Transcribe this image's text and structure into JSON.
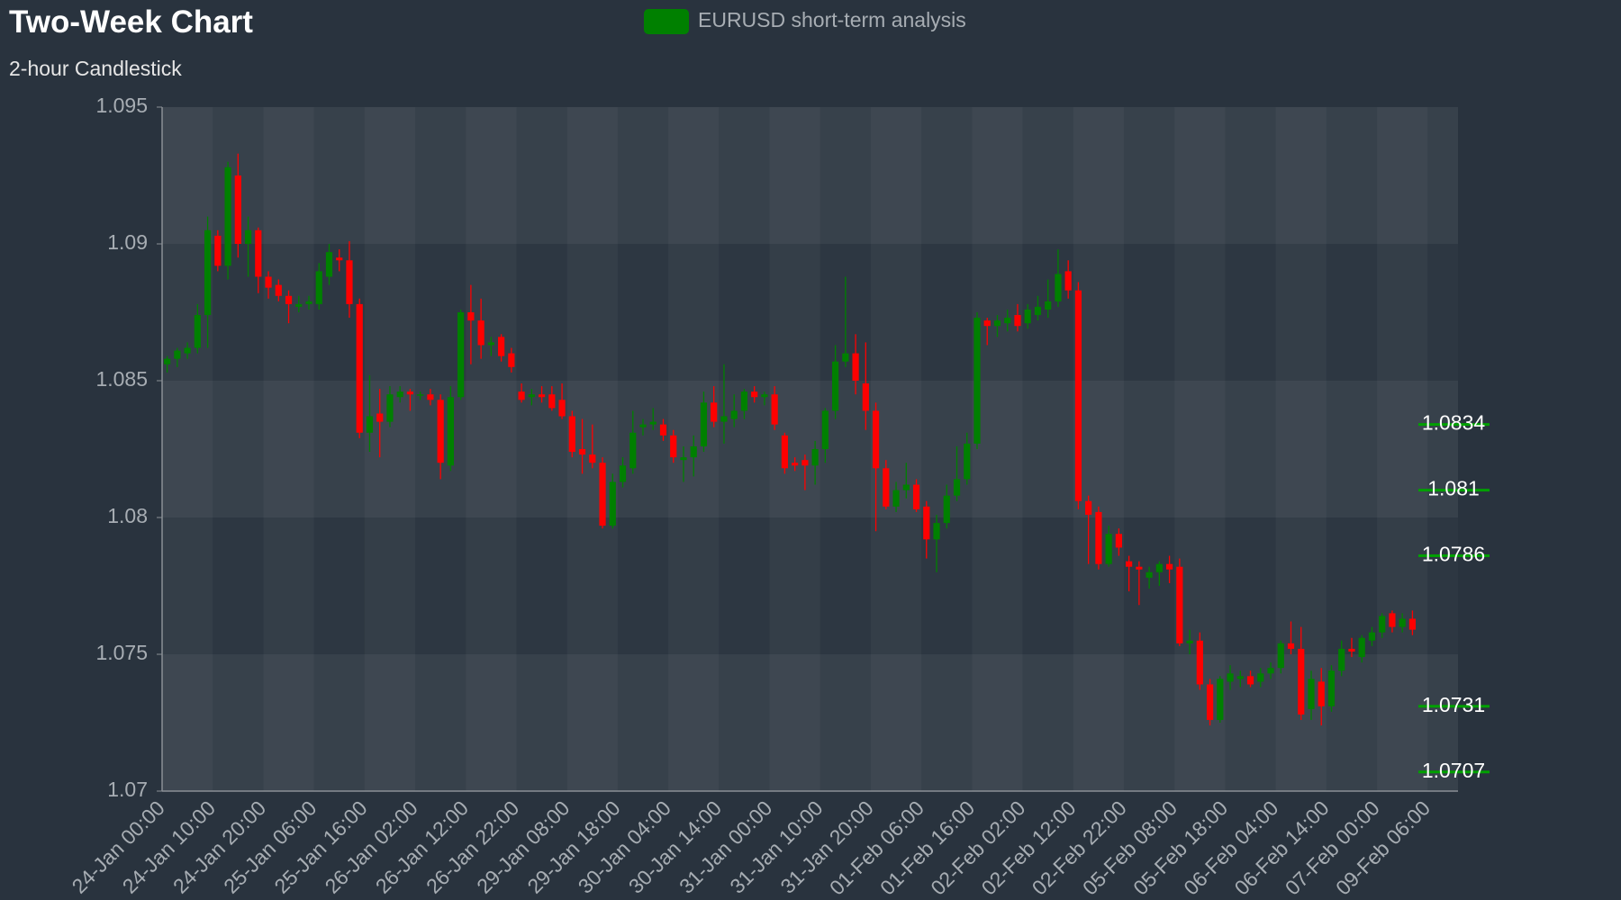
{
  "chart_data": {
    "type": "candlestick",
    "title": "Two-Week Chart",
    "subtitle": "2-hour Candlestick",
    "categories": [
      "24-Jan 00:00",
      null,
      null,
      null,
      null,
      "24-Jan 10:00",
      null,
      null,
      null,
      null,
      "24-Jan 20:00",
      null,
      null,
      null,
      null,
      "25-Jan 06:00",
      null,
      null,
      null,
      null,
      "25-Jan 16:00",
      null,
      null,
      null,
      null,
      "26-Jan 02:00",
      null,
      null,
      null,
      null,
      "26-Jan 12:00",
      null,
      null,
      null,
      null,
      "26-Jan 22:00",
      null,
      null,
      null,
      null,
      "29-Jan 08:00",
      null,
      null,
      null,
      null,
      "29-Jan 18:00",
      null,
      null,
      null,
      null,
      "30-Jan 04:00",
      null,
      null,
      null,
      null,
      "30-Jan 14:00",
      null,
      null,
      null,
      null,
      "31-Jan 00:00",
      null,
      null,
      null,
      null,
      "31-Jan 10:00",
      null,
      null,
      null,
      null,
      "31-Jan 20:00",
      null,
      null,
      null,
      null,
      "01-Feb 06:00",
      null,
      null,
      null,
      null,
      "01-Feb 16:00",
      null,
      null,
      null,
      null,
      "02-Feb 02:00",
      null,
      null,
      null,
      null,
      "02-Feb 12:00",
      null,
      null,
      null,
      null,
      "02-Feb 22:00",
      null,
      null,
      null,
      null,
      "05-Feb 08:00",
      null,
      null,
      null,
      null,
      "05-Feb 18:00",
      null,
      null,
      null,
      null,
      "06-Feb 04:00",
      null,
      null,
      null,
      null,
      "06-Feb 14:00",
      null,
      null,
      null,
      null,
      "07-Feb 00:00",
      null,
      null,
      null,
      null,
      "09-Feb 06:00",
      null,
      null
    ],
    "series": [
      {
        "name": "EURUSD short-term analysis",
        "color": "#008000",
        "down_color": "#ff0000",
        "open": [
          1.0856,
          1.0858,
          1.086,
          1.0862,
          1.0874,
          1.0903,
          1.0892,
          1.0925,
          1.09,
          1.0905,
          1.0888,
          1.0885,
          1.0881,
          1.0877,
          1.0878,
          1.0878,
          1.0888,
          1.0895,
          1.0894,
          1.0878,
          1.0831,
          1.0838,
          1.0835,
          1.0844,
          1.0846,
          1.0845,
          1.0845,
          1.0843,
          1.0819,
          1.0844,
          1.0875,
          1.0872,
          1.0863,
          1.0866,
          1.086,
          1.0846,
          1.0844,
          1.0845,
          1.0845,
          1.0843,
          1.0837,
          1.0825,
          1.0823,
          1.082,
          1.0797,
          1.0813,
          1.0818,
          1.0833,
          1.0834,
          1.0834,
          1.083,
          1.0821,
          1.0822,
          1.0826,
          1.0842,
          1.0835,
          1.0836,
          1.0839,
          1.0846,
          1.0844,
          1.0845,
          1.083,
          1.082,
          1.0821,
          1.0819,
          1.0825,
          1.0839,
          1.0857,
          1.086,
          1.0849,
          1.0839,
          1.0818,
          1.0804,
          1.081,
          1.0812,
          1.0804,
          1.0792,
          1.0798,
          1.0808,
          1.0814,
          1.0827,
          1.0872,
          1.087,
          1.0871,
          1.0874,
          1.0871,
          1.0874,
          1.0876,
          1.0879,
          1.089,
          1.0883,
          1.0806,
          1.0802,
          1.0783,
          1.0794,
          1.0784,
          1.0782,
          1.0778,
          1.078,
          1.0783,
          1.0782,
          1.0754,
          1.0755,
          1.0739,
          1.0726,
          1.074,
          1.0741,
          1.0742,
          1.074,
          1.0743,
          1.0745,
          1.0754,
          1.0752,
          1.073,
          1.074,
          1.0731,
          1.0744,
          1.0752,
          1.0749,
          1.0755,
          1.0758,
          1.0765,
          1.076,
          1.0763,
          null,
          null,
          null,
          null
        ],
        "high": [
          1.0859,
          1.0862,
          1.0864,
          1.0878,
          1.091,
          1.0905,
          1.093,
          1.0933,
          1.091,
          1.0906,
          1.089,
          1.0887,
          1.0883,
          1.0881,
          1.0881,
          1.0893,
          1.09,
          1.0898,
          1.0901,
          1.088,
          1.0852,
          1.0847,
          1.0848,
          1.0848,
          1.0847,
          1.0846,
          1.0847,
          1.0845,
          1.0848,
          1.0876,
          1.0885,
          1.088,
          1.0866,
          1.0867,
          1.0862,
          1.0849,
          1.0847,
          1.0848,
          1.0848,
          1.0849,
          1.0839,
          1.0836,
          1.0834,
          1.0822,
          1.0816,
          1.0822,
          1.0839,
          1.0836,
          1.084,
          1.0836,
          1.0832,
          1.0826,
          1.083,
          1.0846,
          1.0848,
          1.0856,
          1.0845,
          1.0847,
          1.0848,
          1.0846,
          1.0848,
          1.0831,
          1.0822,
          1.0823,
          1.0828,
          1.084,
          1.0863,
          1.0888,
          1.0867,
          1.0864,
          1.0842,
          1.0821,
          1.0813,
          1.082,
          1.0814,
          1.0806,
          1.0801,
          1.0812,
          1.0826,
          1.0831,
          1.0875,
          1.0873,
          1.0874,
          1.0876,
          1.0878,
          1.0878,
          1.0881,
          1.0887,
          1.0898,
          1.0894,
          1.0886,
          1.0808,
          1.0804,
          1.0797,
          1.0796,
          1.0786,
          1.0784,
          1.0782,
          1.0784,
          1.0786,
          1.0785,
          1.0759,
          1.0758,
          1.0741,
          1.0742,
          1.0746,
          1.0744,
          1.0744,
          1.0745,
          1.0747,
          1.0755,
          1.0762,
          1.076,
          1.0744,
          1.0745,
          1.0746,
          1.0755,
          1.0756,
          1.0757,
          1.076,
          1.0765,
          1.0766,
          1.0765,
          1.0766,
          null,
          null,
          null,
          null
        ],
        "low": [
          1.0853,
          1.0855,
          1.0858,
          1.086,
          1.0862,
          1.089,
          1.0887,
          1.0895,
          1.0888,
          1.0882,
          1.088,
          1.0879,
          1.0871,
          1.0875,
          1.0876,
          1.0876,
          1.0885,
          1.089,
          1.0873,
          1.0829,
          1.0824,
          1.0822,
          1.0833,
          1.0842,
          1.0839,
          1.0843,
          1.0841,
          1.0814,
          1.0817,
          1.0843,
          1.0856,
          1.0858,
          1.0859,
          1.0857,
          1.0853,
          1.0842,
          1.0841,
          1.0842,
          1.0839,
          1.0836,
          1.0822,
          1.0816,
          1.0818,
          1.0796,
          1.0796,
          1.0811,
          1.0816,
          1.083,
          1.0832,
          1.0828,
          1.082,
          1.0813,
          1.0815,
          1.0824,
          1.0833,
          1.0827,
          1.0833,
          1.0836,
          1.0842,
          1.0841,
          1.0832,
          1.0816,
          1.0817,
          1.081,
          1.0812,
          1.082,
          1.0836,
          1.0855,
          1.0845,
          1.0832,
          1.0795,
          1.0803,
          1.0802,
          1.0807,
          1.0802,
          1.0785,
          1.078,
          1.0796,
          1.0806,
          1.0812,
          1.0825,
          1.0863,
          1.0866,
          1.0868,
          1.0868,
          1.0869,
          1.0872,
          1.0873,
          1.0877,
          1.088,
          1.0803,
          1.0783,
          1.0781,
          1.0782,
          1.0786,
          1.0773,
          1.0768,
          1.0774,
          1.0775,
          1.0776,
          1.0753,
          1.075,
          1.0737,
          1.0724,
          1.0725,
          1.0737,
          1.0738,
          1.0738,
          1.0738,
          1.0741,
          1.0743,
          1.075,
          1.0726,
          1.0726,
          1.0724,
          1.0729,
          1.0742,
          1.0749,
          1.0747,
          1.0753,
          1.0756,
          1.0758,
          1.0758,
          1.0757,
          null,
          null,
          null,
          null
        ],
        "close": [
          1.0858,
          1.0861,
          1.0862,
          1.0874,
          1.0905,
          1.0892,
          1.0928,
          1.09,
          1.0905,
          1.0888,
          1.0884,
          1.0881,
          1.0878,
          1.0878,
          1.0879,
          1.089,
          1.0897,
          1.0894,
          1.0878,
          1.0831,
          1.0837,
          1.0835,
          1.0845,
          1.0846,
          1.0845,
          1.0845,
          1.0843,
          1.082,
          1.0844,
          1.0875,
          1.0872,
          1.0863,
          1.0864,
          1.0859,
          1.0855,
          1.0843,
          1.0845,
          1.0844,
          1.084,
          1.0837,
          1.0824,
          1.0823,
          1.082,
          1.0797,
          1.0813,
          1.0819,
          1.0831,
          1.0834,
          1.0835,
          1.083,
          1.0822,
          1.0822,
          1.0826,
          1.0842,
          1.0835,
          1.0837,
          1.0839,
          1.0846,
          1.0844,
          1.0845,
          1.0834,
          1.0818,
          1.0819,
          1.0819,
          1.0825,
          1.0839,
          1.0857,
          1.086,
          1.085,
          1.0839,
          1.0818,
          1.0804,
          1.081,
          1.0812,
          1.0803,
          1.0792,
          1.0798,
          1.0808,
          1.0814,
          1.0827,
          1.0873,
          1.087,
          1.0872,
          1.0873,
          1.087,
          1.0876,
          1.0877,
          1.0879,
          1.0889,
          1.0883,
          1.0806,
          1.0801,
          1.0783,
          1.0794,
          1.0789,
          1.0782,
          1.0781,
          1.078,
          1.0783,
          1.0781,
          1.0754,
          1.0755,
          1.0739,
          1.0726,
          1.0741,
          1.0743,
          1.0742,
          1.0739,
          1.0743,
          1.0745,
          1.0754,
          1.0752,
          1.0728,
          1.0741,
          1.0731,
          1.0744,
          1.0752,
          1.0751,
          1.0756,
          1.0758,
          1.0764,
          1.076,
          1.0763,
          1.0759,
          null,
          null,
          null,
          null
        ]
      }
    ],
    "ylim": [
      1.07,
      1.095
    ],
    "yticks": [
      1.07,
      1.075,
      1.08,
      1.085,
      1.09,
      1.095
    ],
    "grid": true,
    "levels": [
      1.0834,
      1.081,
      1.0786,
      1.0731,
      1.0707
    ],
    "level_color": "#00a000"
  }
}
